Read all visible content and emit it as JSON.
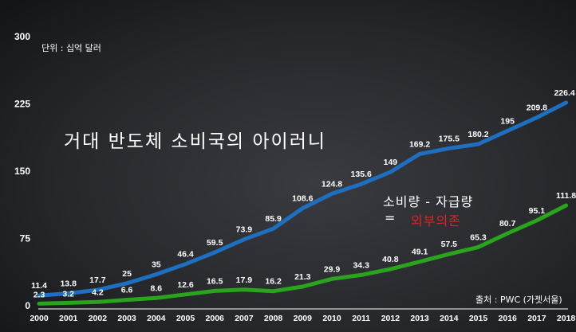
{
  "unit_label": "단위 : 십억 달러",
  "headline": "거대 반도체 소비국의 아이러니",
  "formula": {
    "line1": "소비량 - 자급량",
    "equals": "=",
    "line2": "외부의존",
    "line2_color": "#e02323"
  },
  "source": "출처 : PWC (가젯서울)",
  "colors": {
    "background": "#1b1c1f",
    "consumption_line": "#1f6fc0",
    "self_supply_line": "#2aa31d",
    "text": "#ffffff"
  },
  "chart_data": {
    "type": "line",
    "x": [
      "2000",
      "2001",
      "2002",
      "2003",
      "2004",
      "2005",
      "2006",
      "2007",
      "2008",
      "2009",
      "2010",
      "2011",
      "2012",
      "2013",
      "2014",
      "2015",
      "2016",
      "2017",
      "2018"
    ],
    "ylim": [
      0,
      300
    ],
    "yticks": [
      "0",
      "75",
      "150",
      "225",
      "300"
    ],
    "grid": false,
    "legend": "none",
    "series": [
      {
        "values": [
          11.4,
          13.8,
          17.7,
          25,
          35,
          46.4,
          59.5,
          73.9,
          85.9,
          108.6,
          124.8,
          135.6,
          149,
          169.2,
          175.5,
          180.2,
          195,
          209.8,
          226.4
        ],
        "labels": [
          "11.4",
          "13.8",
          "17.7",
          "25",
          "35",
          "46.4",
          "59.5",
          "73.9",
          "85.9",
          "108.6",
          "124.8",
          "135.6",
          "149",
          "169.2",
          "175.5",
          "180.2",
          "195",
          "209.8",
          "226.4"
        ],
        "color": "#1f6fc0"
      },
      {
        "values": [
          2.3,
          3.2,
          4.2,
          6.6,
          8.6,
          12.6,
          16.5,
          17.9,
          16.2,
          21.3,
          29.9,
          34.3,
          40.8,
          49.1,
          57.5,
          65.3,
          80.7,
          95.1,
          111.8
        ],
        "labels": [
          "2.3",
          "3.2",
          "4.2",
          "6.6",
          "8.6",
          "12.6",
          "16.5",
          "17.9",
          "16.2",
          "21.3",
          "29.9",
          "34.3",
          "40.8",
          "49.1",
          "57.5",
          "65.3",
          "80.7",
          "95.1",
          "111.8"
        ],
        "color": "#2aa31d"
      }
    ]
  }
}
